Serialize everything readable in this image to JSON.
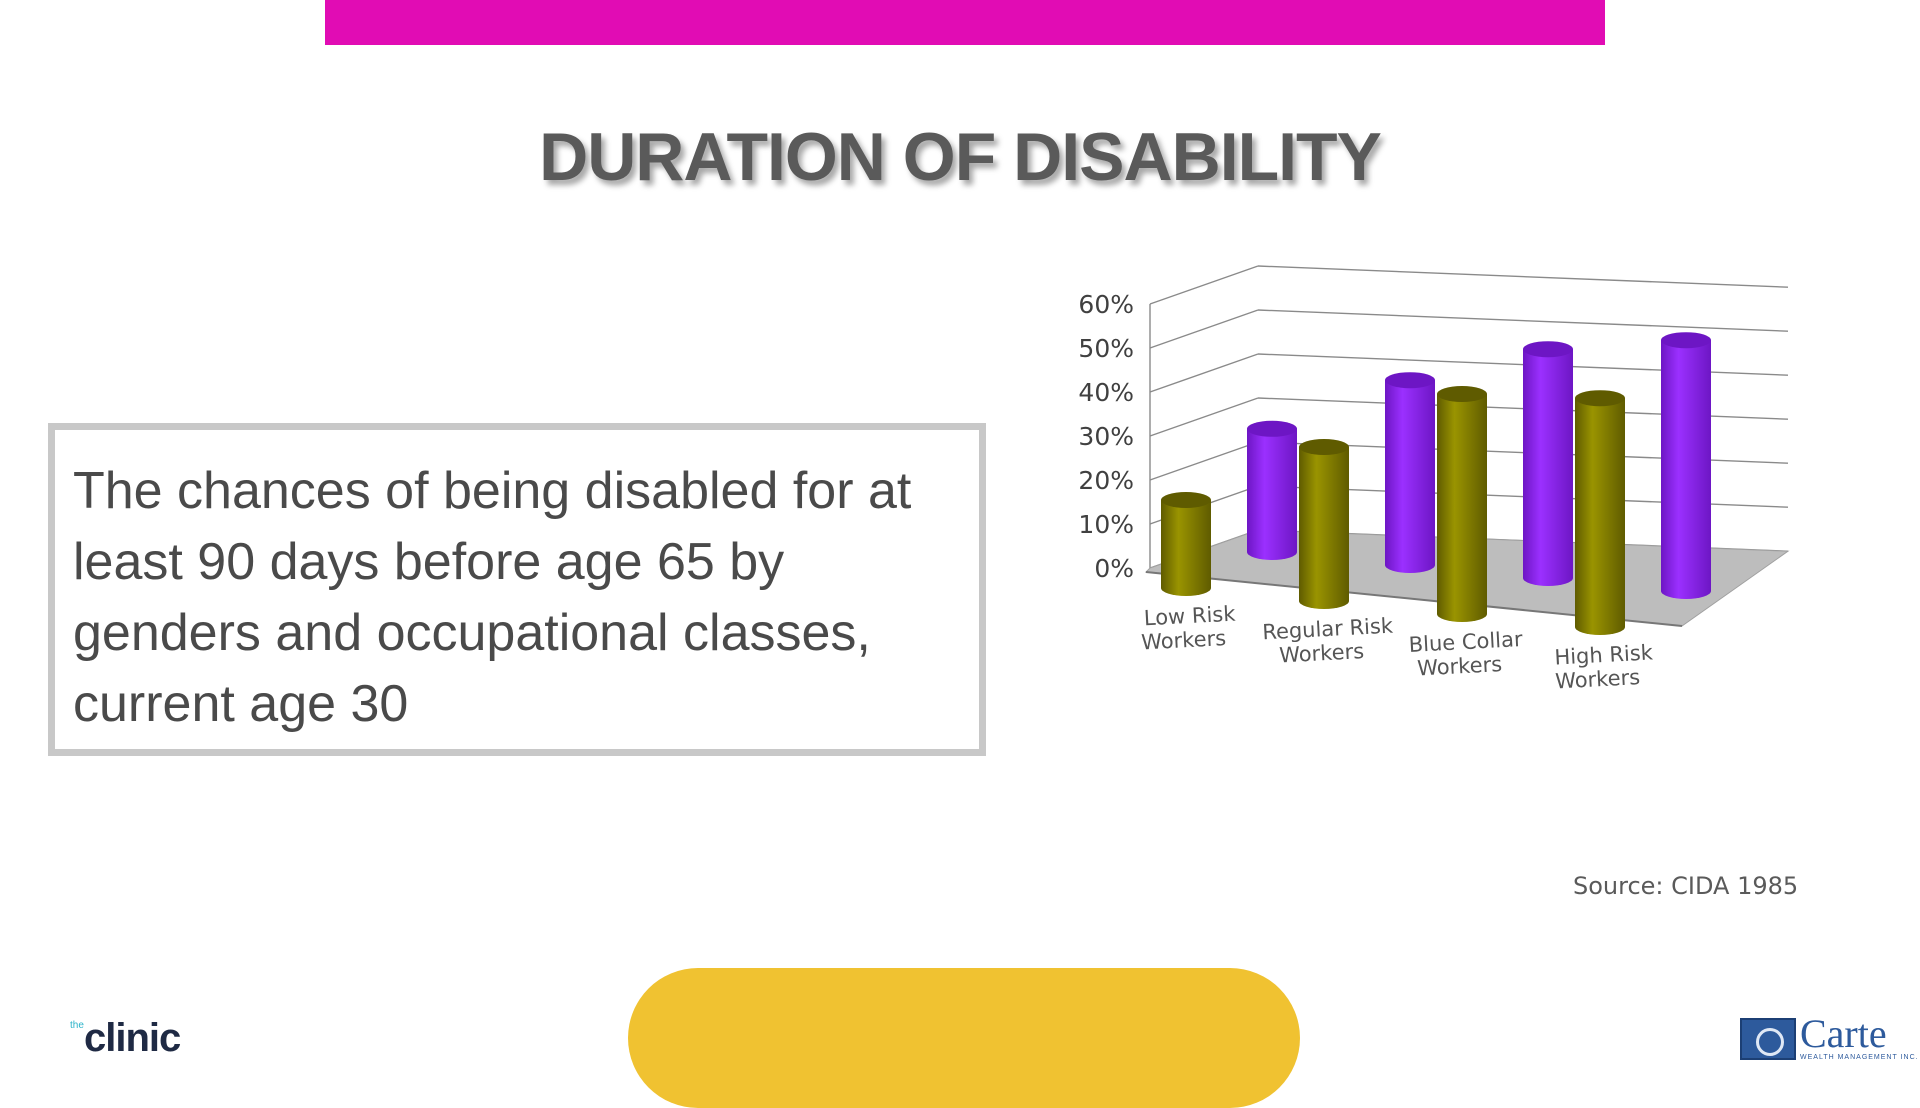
{
  "slide": {
    "title": "DURATION OF DISABILITY",
    "body_text": "The chances of being disabled for at least 90 days before age 65 by genders and occupational classes, current age 30",
    "source": "Source: CIDA 1985"
  },
  "logos": {
    "left_small": "the",
    "left_word": "clinic",
    "right_word": "Carte",
    "right_sub": "WEALTH MANAGEMENT INC."
  },
  "colors": {
    "top_bar": "#e10cb4",
    "pill": "#f0c231",
    "series_olive": "#9a9400",
    "series_purple": "#9b30ff",
    "floor": "#bdbdbd"
  },
  "chart_data": {
    "type": "bar",
    "style": "3d-cylinder",
    "categories": [
      [
        "Low Risk",
        "Workers"
      ],
      [
        "Regular Risk",
        "Workers"
      ],
      [
        "Blue Collar",
        "Workers"
      ],
      [
        "High Risk",
        "Workers"
      ]
    ],
    "series": [
      {
        "values": [
          20,
          35,
          50,
          52
        ]
      },
      {
        "values": [
          28,
          42,
          52,
          57
        ]
      }
    ],
    "y_ticks": [
      "0%",
      "10%",
      "20%",
      "30%",
      "40%",
      "50%",
      "60%"
    ],
    "ylim": [
      0,
      60
    ],
    "grid": true,
    "legend": "none"
  }
}
